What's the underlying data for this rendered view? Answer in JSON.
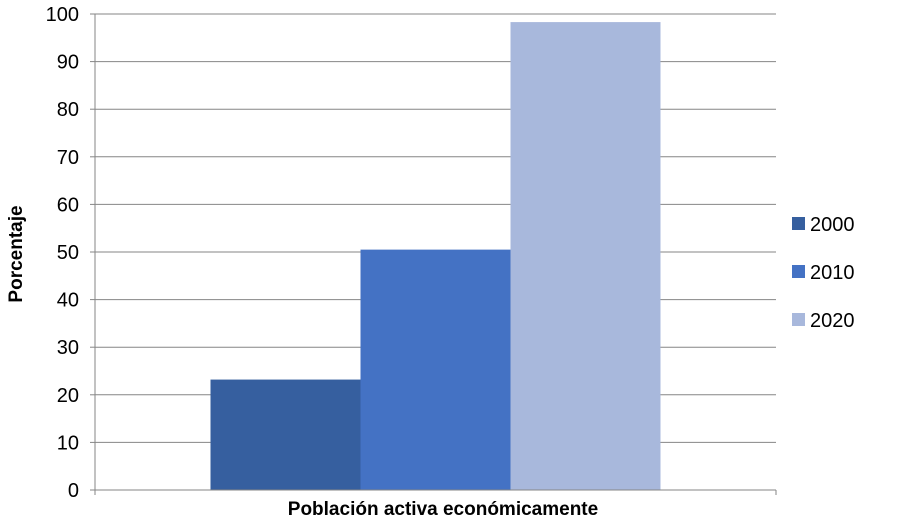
{
  "chart_data": {
    "type": "bar",
    "categories": [
      "Población activa económicamente"
    ],
    "series": [
      {
        "name": "2000",
        "values": [
          23.2
        ],
        "color": "#365F9F"
      },
      {
        "name": "2010",
        "values": [
          50.5
        ],
        "color": "#4472C4"
      },
      {
        "name": "2020",
        "values": [
          98.3
        ],
        "color": "#A8B8DC"
      }
    ],
    "title": "",
    "xlabel": "Población activa económicamente",
    "ylabel": "Porcentaje",
    "ylim": [
      0,
      100
    ],
    "yticks": [
      0,
      10,
      20,
      30,
      40,
      50,
      60,
      70,
      80,
      90,
      100
    ],
    "yticks_labels": [
      "0",
      "10",
      "20",
      "30",
      "40",
      "50",
      "60",
      "70",
      "80",
      "90",
      "100"
    ],
    "grid": true,
    "legend_position": "right"
  }
}
